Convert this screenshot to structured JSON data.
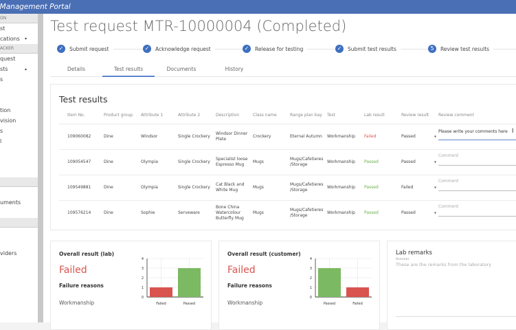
{
  "header": {
    "title": "ty Management Portal"
  },
  "sidebar": {
    "items": [
      {
        "type": "section",
        "label": "ON"
      },
      {
        "label": "st"
      },
      {
        "label": "cations",
        "caret": "▾"
      },
      {
        "type": "section",
        "label": "ACKER"
      },
      {
        "label": "quest"
      },
      {
        "label": "sts",
        "caret": "▴"
      },
      {
        "label": "s"
      },
      {
        "label": ""
      },
      {
        "label": ""
      },
      {
        "label": "tion"
      },
      {
        "label": "vision"
      },
      {
        "label": "s"
      },
      {
        "label": "l"
      },
      {
        "label": ""
      },
      {
        "label": ""
      },
      {
        "label": ""
      },
      {
        "type": "section",
        "label": ""
      },
      {
        "label": ""
      },
      {
        "label": "uments"
      },
      {
        "label": ""
      },
      {
        "type": "section",
        "label": ""
      },
      {
        "label": ""
      },
      {
        "label": ""
      },
      {
        "label": "viders"
      }
    ]
  },
  "page": {
    "title": "Test request MTR-10000004 (Completed)"
  },
  "steps": [
    {
      "label": "Submit request",
      "icon": "check"
    },
    {
      "label": "Acknowledge request",
      "icon": "check"
    },
    {
      "label": "Release for testing",
      "icon": "check"
    },
    {
      "label": "Submit test results",
      "icon": "check"
    },
    {
      "label": "Review test results",
      "number": "5"
    }
  ],
  "tabs": [
    {
      "label": "Details"
    },
    {
      "label": "Test results",
      "active": true
    },
    {
      "label": "Documents"
    },
    {
      "label": "History"
    }
  ],
  "results": {
    "title": "Test results",
    "columns": [
      "Item No.",
      "Product group",
      "Attribute 1",
      "Attribute 2",
      "Description",
      "Class name",
      "Range plan bay",
      "Test",
      "Lab result",
      "Review result",
      "Review comment"
    ],
    "rows": [
      {
        "item": "109060082",
        "group": "Dine",
        "attr1": "Windsor",
        "attr2": "Single Crockery",
        "desc": "Windsor Dinner Plate",
        "class": "Crockery",
        "bay": "Eternal Autumn",
        "test": "Workmanship",
        "lab": "Failed",
        "review": "Passed",
        "comment": "Please write your comments here",
        "placeholder": "Comment"
      },
      {
        "item": "109054547",
        "group": "Dine",
        "attr1": "Olympia",
        "attr2": "Single Crockery",
        "desc": "Specialist loose Espresso Mug",
        "class": "Mugs",
        "bay": "Mugs/Cafetieres /Storage",
        "test": "Workmanship",
        "lab": "Passed",
        "review": "Passed",
        "comment": "",
        "placeholder": "Comment"
      },
      {
        "item": "109549881",
        "group": "Dine",
        "attr1": "Olympia",
        "attr2": "Single Crockery",
        "desc": "Cat Black and White Mug",
        "class": "Mugs",
        "bay": "Mugs/Cafetieres /Storage",
        "test": "Workmanship",
        "lab": "Passed",
        "review": "Failed",
        "comment": "",
        "placeholder": "Comment"
      },
      {
        "item": "109576214",
        "group": "Dine",
        "attr1": "Sophie",
        "attr2": "Serveware",
        "desc": "Bone China Watercolour Butterfly Mug",
        "class": "Mugs",
        "bay": "Mugs/Cafetieres /Storage",
        "test": "Workmanship",
        "lab": "Passed",
        "review": "Passed",
        "comment": "",
        "placeholder": "Comment"
      }
    ]
  },
  "lab": {
    "title": "Overall result (lab)",
    "result": "Failed",
    "reasons_label": "Failure reasons",
    "reason": "Workmanship"
  },
  "customer": {
    "title": "Overall result (customer)",
    "result": "Failed",
    "reasons_label": "Failure reasons",
    "reason": "Workmanship"
  },
  "remarks": {
    "title": "Lab remarks",
    "label": "Remarks",
    "text": "These are the remarks from the laboratory"
  },
  "colors": {
    "header": "#4a6fb5",
    "failed": "#d9534f",
    "passed": "#6ab04c",
    "bar_failed": "#d9534f",
    "bar_passed": "#7cb963"
  },
  "chart_data": [
    {
      "type": "bar",
      "categories": [
        "Failed",
        "Passed"
      ],
      "values": [
        1,
        3
      ],
      "ylim": [
        0,
        4
      ],
      "yticks": [
        0,
        1,
        2,
        3,
        4
      ],
      "colors": [
        "#d9534f",
        "#7cb963"
      ],
      "grid": true
    },
    {
      "type": "bar",
      "categories": [
        "Passed",
        "Failed"
      ],
      "values": [
        3,
        1
      ],
      "ylim": [
        0,
        4
      ],
      "yticks": [
        0,
        1,
        2,
        3,
        4
      ],
      "colors": [
        "#7cb963",
        "#d9534f"
      ],
      "grid": true
    }
  ]
}
